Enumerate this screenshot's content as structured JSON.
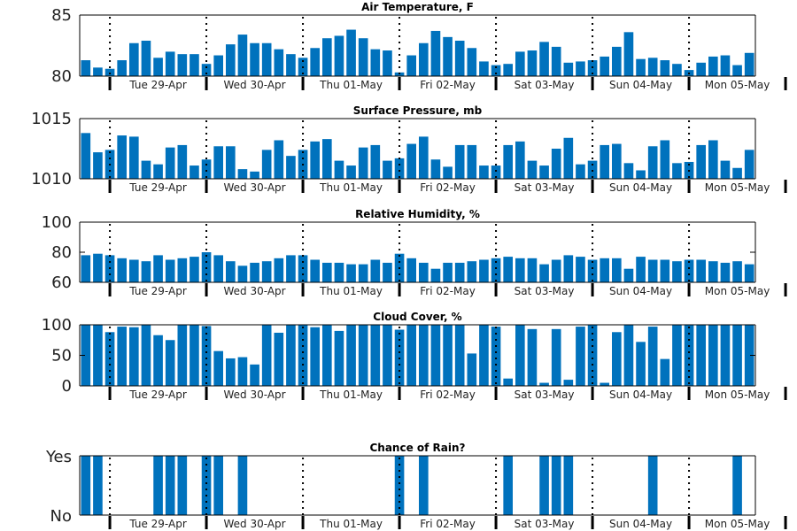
{
  "chart_data": [
    {
      "type": "bar",
      "title": "Air Temperature, F",
      "ylim": [
        80,
        85
      ],
      "yticks": [
        80,
        85
      ],
      "color": "#0072BD",
      "day_labels": [
        "Tue 29-Apr",
        "Wed 30-Apr",
        "Thu 01-May",
        "Fri 02-May",
        "Sat 03-May",
        "Sun 04-May",
        "Mon 05-May"
      ],
      "values": [
        81.3,
        80.7,
        80.6,
        81.3,
        82.7,
        82.9,
        81.5,
        82.0,
        81.8,
        81.8,
        81.0,
        81.7,
        82.6,
        83.4,
        82.7,
        82.7,
        82.2,
        81.8,
        81.5,
        82.3,
        83.1,
        83.3,
        83.8,
        83.1,
        82.2,
        82.1,
        80.3,
        81.7,
        82.7,
        83.7,
        83.2,
        82.9,
        82.3,
        81.2,
        80.9,
        81.0,
        82.0,
        82.1,
        82.8,
        82.4,
        81.1,
        81.2,
        81.3,
        81.6,
        82.4,
        83.6,
        81.4,
        81.5,
        81.3,
        81.0,
        80.5,
        81.1,
        81.6,
        81.7,
        80.9,
        81.9
      ]
    },
    {
      "type": "bar",
      "title": "Surface Pressure, mb",
      "ylim": [
        1010,
        1015
      ],
      "yticks": [
        1010,
        1015
      ],
      "color": "#0072BD",
      "day_labels": [
        "Tue 29-Apr",
        "Wed 30-Apr",
        "Thu 01-May",
        "Fri 02-May",
        "Sat 03-May",
        "Sun 04-May",
        "Mon 05-May"
      ],
      "values": [
        1013.8,
        1012.2,
        1012.4,
        1013.6,
        1013.5,
        1011.5,
        1011.2,
        1012.6,
        1012.8,
        1011.1,
        1011.6,
        1012.7,
        1012.7,
        1010.8,
        1010.6,
        1012.4,
        1013.2,
        1011.9,
        1012.4,
        1013.1,
        1013.3,
        1011.5,
        1011.1,
        1012.6,
        1012.8,
        1011.5,
        1011.7,
        1012.9,
        1013.5,
        1011.6,
        1011.0,
        1012.8,
        1012.8,
        1011.1,
        1011.1,
        1012.8,
        1013.1,
        1011.5,
        1011.1,
        1012.5,
        1013.4,
        1011.2,
        1011.5,
        1012.8,
        1012.9,
        1011.3,
        1010.7,
        1012.7,
        1013.2,
        1011.3,
        1011.4,
        1012.8,
        1013.2,
        1011.5,
        1010.9,
        1012.4
      ]
    },
    {
      "type": "bar",
      "title": "Relative Humidity, %",
      "ylim": [
        60,
        100
      ],
      "yticks": [
        60,
        80,
        100
      ],
      "color": "#0072BD",
      "day_labels": [
        "Tue 29-Apr",
        "Wed 30-Apr",
        "Thu 01-May",
        "Fri 02-May",
        "Sat 03-May",
        "Sun 04-May",
        "Mon 05-May"
      ],
      "values": [
        78,
        79,
        78,
        76,
        75,
        74,
        78,
        75,
        76,
        77,
        80,
        78,
        74,
        71,
        73,
        74,
        76,
        78,
        78,
        75,
        73,
        73,
        72,
        72,
        75,
        73,
        79,
        76,
        73,
        69,
        73,
        73,
        74,
        75,
        76,
        77,
        76,
        76,
        72,
        75,
        78,
        77,
        75,
        76,
        76,
        69,
        77,
        75,
        75,
        74,
        75,
        75,
        74,
        73,
        74,
        72
      ]
    },
    {
      "type": "bar",
      "title": "Cloud Cover, %",
      "ylim": [
        0,
        100
      ],
      "yticks": [
        0,
        50,
        100
      ],
      "color": "#0072BD",
      "day_labels": [
        "Tue 29-Apr",
        "Wed 30-Apr",
        "Thu 01-May",
        "Fri 02-May",
        "Sat 03-May",
        "Sun 04-May",
        "Mon 05-May"
      ],
      "values": [
        100,
        100,
        88,
        97,
        96,
        100,
        83,
        75,
        100,
        100,
        98,
        57,
        45,
        47,
        35,
        100,
        87,
        100,
        100,
        96,
        100,
        90,
        100,
        100,
        100,
        100,
        92,
        100,
        100,
        100,
        100,
        100,
        53,
        100,
        97,
        12,
        100,
        93,
        5,
        93,
        10,
        97,
        100,
        5,
        88,
        100,
        72,
        97,
        44,
        100,
        100,
        100,
        100,
        100,
        100,
        100
      ]
    },
    {
      "type": "bar",
      "title": "Chance of Rain?",
      "ylim": [
        0,
        1
      ],
      "ytick_labels": [
        "No",
        "Yes"
      ],
      "color": "#0072BD",
      "day_labels": [
        "Tue 29-Apr",
        "Wed 30-Apr",
        "Thu 01-May",
        "Fri 02-May",
        "Sat 03-May",
        "Sun 04-May",
        "Mon 05-May"
      ],
      "values": [
        1,
        1,
        0,
        0,
        0,
        0,
        1,
        1,
        1,
        0,
        1,
        1,
        0,
        1,
        0,
        0,
        0,
        0,
        0,
        0,
        0,
        0,
        0,
        0,
        0,
        0,
        1,
        0,
        1,
        0,
        0,
        0,
        0,
        0,
        0,
        1,
        0,
        0,
        1,
        1,
        1,
        0,
        0,
        0,
        0,
        0,
        0,
        1,
        0,
        0,
        0,
        0,
        0,
        0,
        1,
        0
      ]
    }
  ]
}
